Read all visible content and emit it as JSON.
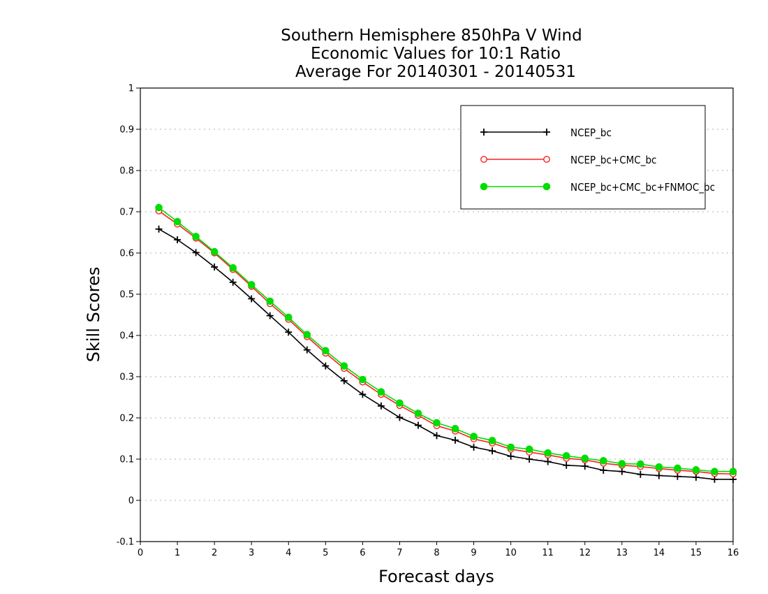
{
  "chart_data": {
    "type": "line",
    "title": [
      "Southern Hemisphere 850hPa V Wind",
      "Economic Values for 10:1 Ratio",
      "Average For 20140301 - 20140531"
    ],
    "xlabel": "Forecast days",
    "ylabel": "Skill Scores",
    "xlim": [
      0,
      16
    ],
    "ylim": [
      -0.1,
      1
    ],
    "xticks": [
      "0",
      "1",
      "2",
      "3",
      "4",
      "5",
      "6",
      "7",
      "8",
      "9",
      "10",
      "11",
      "12",
      "13",
      "14",
      "15",
      "16"
    ],
    "yticks": [
      "-0.1",
      "0",
      "0.1",
      "0.2",
      "0.3",
      "0.4",
      "0.5",
      "0.6",
      "0.7",
      "0.8",
      "0.9",
      "1"
    ],
    "grid": true,
    "legend_position": "top-right",
    "x": [
      0.5,
      1,
      1.5,
      2,
      2.5,
      3,
      3.5,
      4,
      4.5,
      5,
      5.5,
      6,
      6.5,
      7,
      7.5,
      8,
      8.5,
      9,
      9.5,
      10,
      10.5,
      11,
      11.5,
      12,
      12.5,
      13,
      13.5,
      14,
      14.5,
      15,
      15.5,
      16
    ],
    "series": [
      {
        "name": "NCEP_bc",
        "color": "#000000",
        "marker": "plus",
        "values": [
          0.658,
          0.632,
          0.601,
          0.566,
          0.529,
          0.489,
          0.448,
          0.408,
          0.365,
          0.326,
          0.29,
          0.257,
          0.229,
          0.201,
          0.182,
          0.157,
          0.146,
          0.129,
          0.12,
          0.107,
          0.1,
          0.094,
          0.085,
          0.083,
          0.073,
          0.07,
          0.063,
          0.06,
          0.058,
          0.056,
          0.051,
          0.051
        ]
      },
      {
        "name": "NCEP_bc+CMC_bc",
        "color": "#ff2020",
        "marker": "open-circle",
        "values": [
          0.702,
          0.67,
          0.636,
          0.6,
          0.56,
          0.519,
          0.477,
          0.439,
          0.397,
          0.357,
          0.32,
          0.287,
          0.257,
          0.23,
          0.206,
          0.181,
          0.168,
          0.149,
          0.139,
          0.124,
          0.117,
          0.11,
          0.102,
          0.098,
          0.09,
          0.085,
          0.082,
          0.077,
          0.073,
          0.07,
          0.065,
          0.064
        ]
      },
      {
        "name": "NCEP_bc+CMC_bc+FNMOC_bc",
        "color": "#00dd00",
        "marker": "filled-circle",
        "values": [
          0.71,
          0.676,
          0.64,
          0.603,
          0.564,
          0.523,
          0.483,
          0.444,
          0.402,
          0.363,
          0.326,
          0.293,
          0.263,
          0.236,
          0.211,
          0.188,
          0.174,
          0.155,
          0.145,
          0.129,
          0.124,
          0.115,
          0.108,
          0.102,
          0.096,
          0.089,
          0.088,
          0.081,
          0.078,
          0.074,
          0.07,
          0.07
        ]
      }
    ]
  }
}
